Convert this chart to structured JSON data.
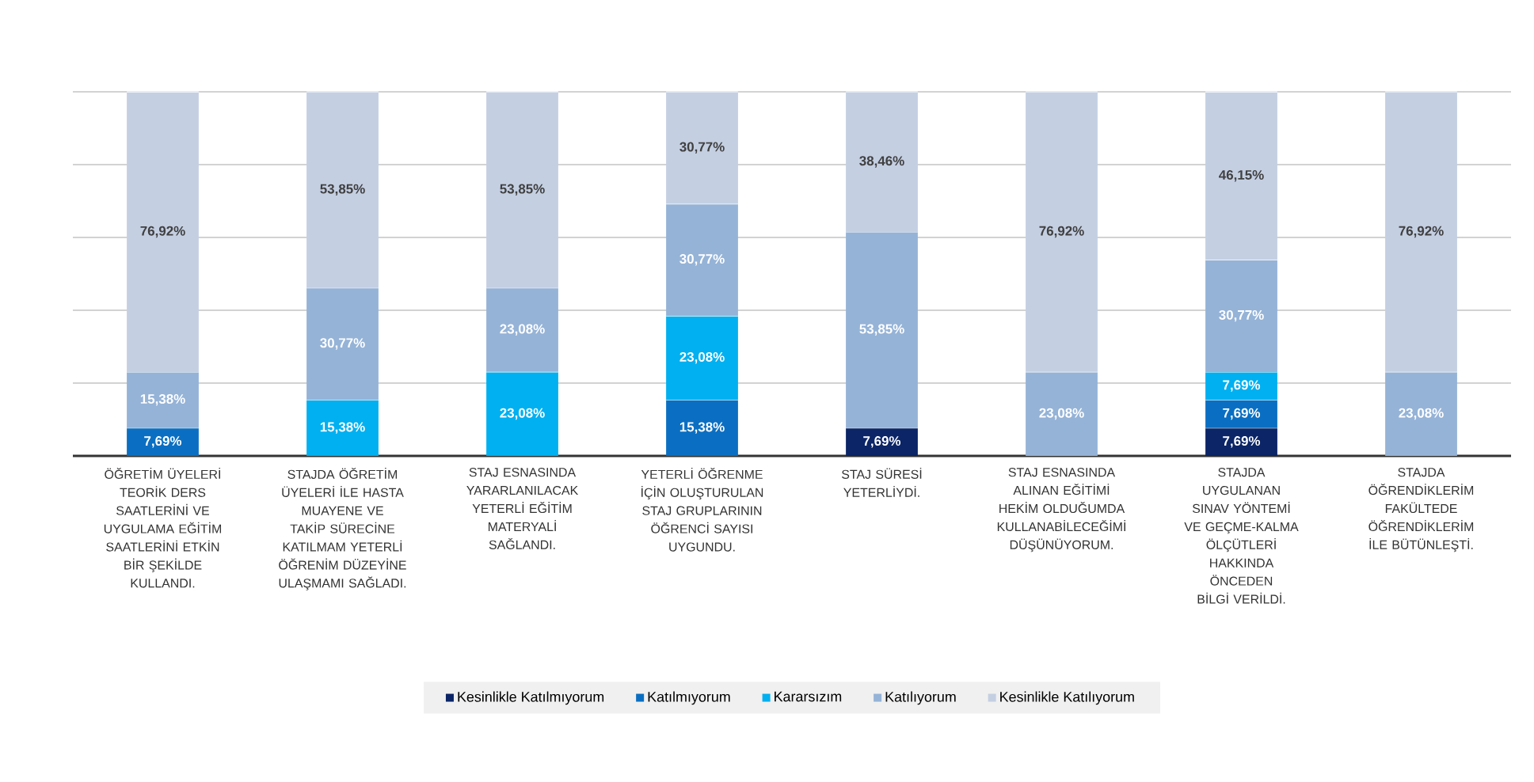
{
  "chart_data": {
    "type": "bar",
    "stacked": true,
    "categories": [
      "ÖĞRETİM ÜYELERİ TEORİK DERS SAATLERİNİ VE UYGULAMA EĞİTİM SAATLERİNİ ETKİN BİR ŞEKİLDE KULLANDI.",
      "STAJDA ÖĞRETİM ÜYELERİ İLE HASTA MUAYENE VE TAKİP SÜRECİNE KATILMAM YETERLİ ÖĞRENİM DÜZEYİNE ULAŞMAMI SAĞLADI.",
      "STAJ ESNASINDA YARARLANILACAK YETERLİ EĞİTİM MATERYALİ SAĞLANDI.",
      "YETERLİ ÖĞRENME İÇİN OLUŞTURULAN STAJ GRUPLARININ ÖĞRENCİ SAYISI UYGUNDU.",
      "STAJ SÜRESİ YETERLİYDİ.",
      "STAJ ESNASINDA ALINAN EĞİTİMİ HEKİM OLDUĞUMDA KULLANABİLECEĞİMİ DÜŞÜNÜYORUM.",
      "STAJDA UYGULANAN SINAV YÖNTEMİ VE GEÇME-KALMA ÖLÇÜTLERİ HAKKINDA ÖNCEDEN BİLGİ VERİLDİ.",
      "STAJDA ÖĞRENDİKLERİM FAKÜLTEDE ÖĞRENDİKLERİM İLE BÜTÜNLEŞTİ."
    ],
    "series": [
      {
        "name": "Kesinlikle Katılmıyorum",
        "color": "#0b2566",
        "values": [
          null,
          null,
          null,
          null,
          7.69,
          null,
          7.69,
          null
        ],
        "value_labels": [
          null,
          null,
          null,
          null,
          "7,69%",
          null,
          "7,69%",
          null
        ]
      },
      {
        "name": "Katılmıyorum",
        "color": "#0a6fc2",
        "values": [
          7.69,
          null,
          null,
          15.38,
          null,
          null,
          7.69,
          null
        ],
        "value_labels": [
          "7,69%",
          null,
          null,
          "15,38%",
          null,
          null,
          "7,69%",
          null
        ]
      },
      {
        "name": "Kararsızım",
        "color": "#00b0f0",
        "values": [
          null,
          15.38,
          23.08,
          23.08,
          null,
          null,
          7.69,
          null
        ],
        "value_labels": [
          null,
          "15,38%",
          "23,08%",
          "23,08%",
          null,
          null,
          "7,69%",
          null
        ]
      },
      {
        "name": "Katılıyorum",
        "color": "#95b3d7",
        "values": [
          15.38,
          30.77,
          23.08,
          30.77,
          53.85,
          23.08,
          30.77,
          23.08
        ],
        "value_labels": [
          "15,38%",
          "30,77%",
          "23,08%",
          "30,77%",
          "53,85%",
          "23,08%",
          "30,77%",
          "23,08%"
        ]
      },
      {
        "name": "Kesinlikle Katılıyorum",
        "color": "#c4cfe2",
        "values": [
          76.92,
          53.85,
          53.85,
          30.77,
          38.46,
          76.92,
          46.15,
          76.92
        ],
        "value_labels": [
          "76,92%",
          "53,85%",
          "53,85%",
          "30,77%",
          "38,46%",
          "76,92%",
          "46,15%",
          "76,92%"
        ]
      }
    ],
    "ylim": [
      0,
      100
    ],
    "grid": "y",
    "legend": "bottom",
    "tick_labels": "x"
  }
}
